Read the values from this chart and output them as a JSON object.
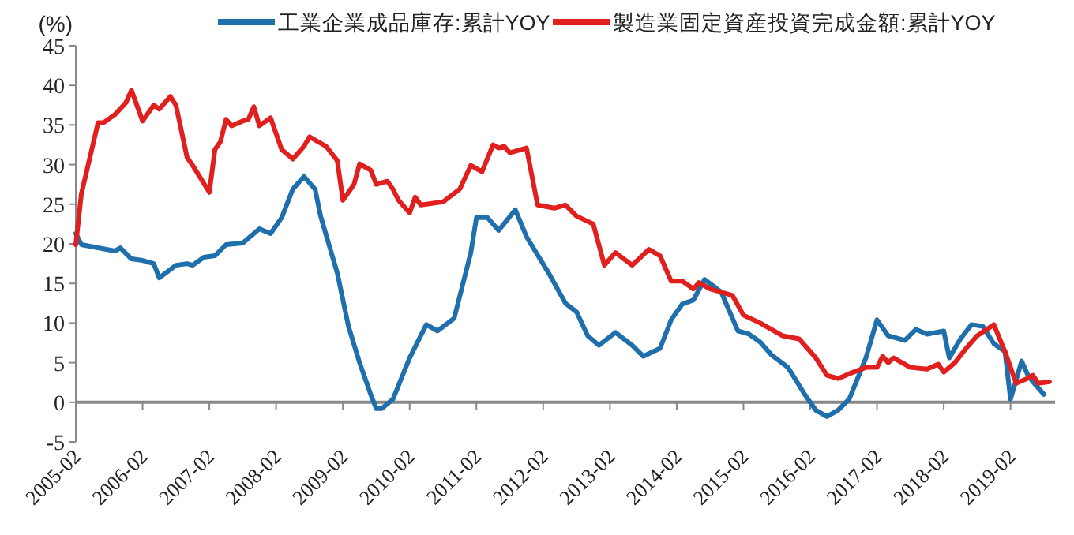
{
  "chart_data": {
    "type": "line",
    "ylabel": "(%)",
    "xlim": [
      "2005-02",
      "2019-10"
    ],
    "ylim": [
      -5,
      45
    ],
    "yticks": [
      -5,
      0,
      5,
      10,
      15,
      20,
      25,
      30,
      35,
      40,
      45
    ],
    "xticks": [
      "2005-02",
      "2006-02",
      "2007-02",
      "2008-02",
      "2009-02",
      "2010-02",
      "2011-02",
      "2012-02",
      "2013-02",
      "2014-02",
      "2015-02",
      "2016-02",
      "2017-02",
      "2018-02",
      "2019-02"
    ],
    "grid": false,
    "legend": "top",
    "line_style": "solid",
    "marker": "none",
    "series": [
      {
        "name": "工業企業成品庫存:累計YOY",
        "color": "#1f6fad",
        "x": [
          "2005-02",
          "2005-03",
          "2005-06",
          "2005-09",
          "2005-10",
          "2005-12",
          "2006-02",
          "2006-04",
          "2006-05",
          "2006-08",
          "2006-10",
          "2006-11",
          "2007-01",
          "2007-03",
          "2007-05",
          "2007-08",
          "2007-11",
          "2008-01",
          "2008-03",
          "2008-05",
          "2008-07",
          "2008-09",
          "2008-10",
          "2009-01",
          "2009-03",
          "2009-05",
          "2009-07",
          "2009-08",
          "2009-09",
          "2009-11",
          "2010-02",
          "2010-05",
          "2010-07",
          "2010-10",
          "2011-01",
          "2011-02",
          "2011-04",
          "2011-06",
          "2011-09",
          "2011-11",
          "2012-03",
          "2012-06",
          "2012-08",
          "2012-10",
          "2012-12",
          "2013-03",
          "2013-06",
          "2013-08",
          "2013-11",
          "2014-01",
          "2014-03",
          "2014-05",
          "2014-07",
          "2014-10",
          "2015-01",
          "2015-03",
          "2015-05",
          "2015-07",
          "2015-10",
          "2016-01",
          "2016-03",
          "2016-05",
          "2016-07",
          "2016-09",
          "2016-12",
          "2017-02",
          "2017-04",
          "2017-07",
          "2017-09",
          "2017-11",
          "2018-02",
          "2018-03",
          "2018-05",
          "2018-07",
          "2018-09",
          "2018-11",
          "2019-01",
          "2019-02",
          "2019-04",
          "2019-05",
          "2019-06",
          "2019-08"
        ],
        "values": [
          21.3,
          19.9,
          19.5,
          19.1,
          19.5,
          18.1,
          17.9,
          17.5,
          15.7,
          17.3,
          17.5,
          17.3,
          18.3,
          18.5,
          19.9,
          20.1,
          21.9,
          21.3,
          23.3,
          26.9,
          28.5,
          26.9,
          23.5,
          16.3,
          9.6,
          5.0,
          1.0,
          -0.8,
          -0.8,
          0.4,
          5.6,
          9.8,
          9.0,
          10.6,
          18.9,
          23.3,
          23.3,
          21.7,
          24.3,
          20.9,
          16.3,
          12.5,
          11.4,
          8.4,
          7.2,
          8.8,
          7.2,
          5.8,
          6.8,
          10.4,
          12.4,
          12.9,
          15.5,
          13.9,
          9.0,
          8.6,
          7.6,
          6.0,
          4.4,
          1.0,
          -1.0,
          -1.8,
          -1.0,
          0.4,
          5.6,
          10.4,
          8.4,
          7.8,
          9.2,
          8.6,
          9.0,
          5.6,
          8.0,
          9.8,
          9.6,
          7.4,
          6.4,
          0.4,
          5.2,
          3.6,
          2.6,
          1.0
        ]
      },
      {
        "name": "製造業固定資産投資完成金額:累計YOY",
        "color": "#e0201f",
        "x": [
          "2005-02",
          "2005-03",
          "2005-06",
          "2005-07",
          "2005-09",
          "2005-11",
          "2005-12",
          "2006-02",
          "2006-04",
          "2006-05",
          "2006-07",
          "2006-08",
          "2006-10",
          "2006-11",
          "2007-02",
          "2007-03",
          "2007-04",
          "2007-05",
          "2007-06",
          "2007-08",
          "2007-09",
          "2007-10",
          "2007-11",
          "2008-01",
          "2008-03",
          "2008-05",
          "2008-07",
          "2008-08",
          "2008-11",
          "2009-01",
          "2009-02",
          "2009-04",
          "2009-05",
          "2009-07",
          "2009-08",
          "2009-10",
          "2009-11",
          "2009-12",
          "2010-02",
          "2010-03",
          "2010-04",
          "2010-08",
          "2010-11",
          "2011-01",
          "2011-03",
          "2011-05",
          "2011-06",
          "2011-07",
          "2011-08",
          "2011-11",
          "2012-01",
          "2012-04",
          "2012-06",
          "2012-08",
          "2012-11",
          "2013-01",
          "2013-03",
          "2013-06",
          "2013-09",
          "2013-11",
          "2014-01",
          "2014-03",
          "2014-05",
          "2014-06",
          "2014-08",
          "2014-12",
          "2015-02",
          "2015-05",
          "2015-09",
          "2015-12",
          "2016-03",
          "2016-05",
          "2016-07",
          "2016-09",
          "2016-12",
          "2017-02",
          "2017-03",
          "2017-04",
          "2017-05",
          "2017-08",
          "2017-11",
          "2018-01",
          "2018-02",
          "2018-04",
          "2018-06",
          "2018-08",
          "2018-11",
          "2019-01",
          "2019-03",
          "2019-05",
          "2019-06",
          "2019-07",
          "2019-09"
        ],
        "values": [
          19.9,
          26.3,
          35.3,
          35.3,
          36.3,
          37.8,
          39.4,
          35.5,
          37.5,
          37.0,
          38.6,
          37.5,
          30.9,
          29.9,
          26.5,
          31.9,
          32.9,
          35.7,
          34.9,
          35.5,
          35.7,
          37.3,
          34.9,
          35.9,
          31.9,
          30.7,
          32.3,
          33.5,
          32.3,
          30.5,
          25.5,
          27.5,
          30.1,
          29.3,
          27.5,
          27.9,
          26.9,
          25.5,
          23.9,
          25.9,
          24.9,
          25.3,
          26.9,
          29.9,
          29.1,
          32.5,
          32.1,
          32.3,
          31.5,
          32.1,
          24.9,
          24.5,
          24.9,
          23.5,
          22.5,
          17.3,
          18.9,
          17.3,
          19.3,
          18.5,
          15.3,
          15.3,
          14.3,
          15.1,
          14.3,
          13.5,
          11.0,
          10.0,
          8.4,
          8.0,
          5.6,
          3.4,
          3.0,
          3.6,
          4.4,
          4.4,
          5.8,
          5.0,
          5.6,
          4.4,
          4.2,
          4.8,
          3.8,
          5.0,
          6.8,
          8.4,
          9.8,
          6.4,
          2.4,
          3.0,
          3.4,
          2.4,
          2.6
        ]
      }
    ]
  }
}
